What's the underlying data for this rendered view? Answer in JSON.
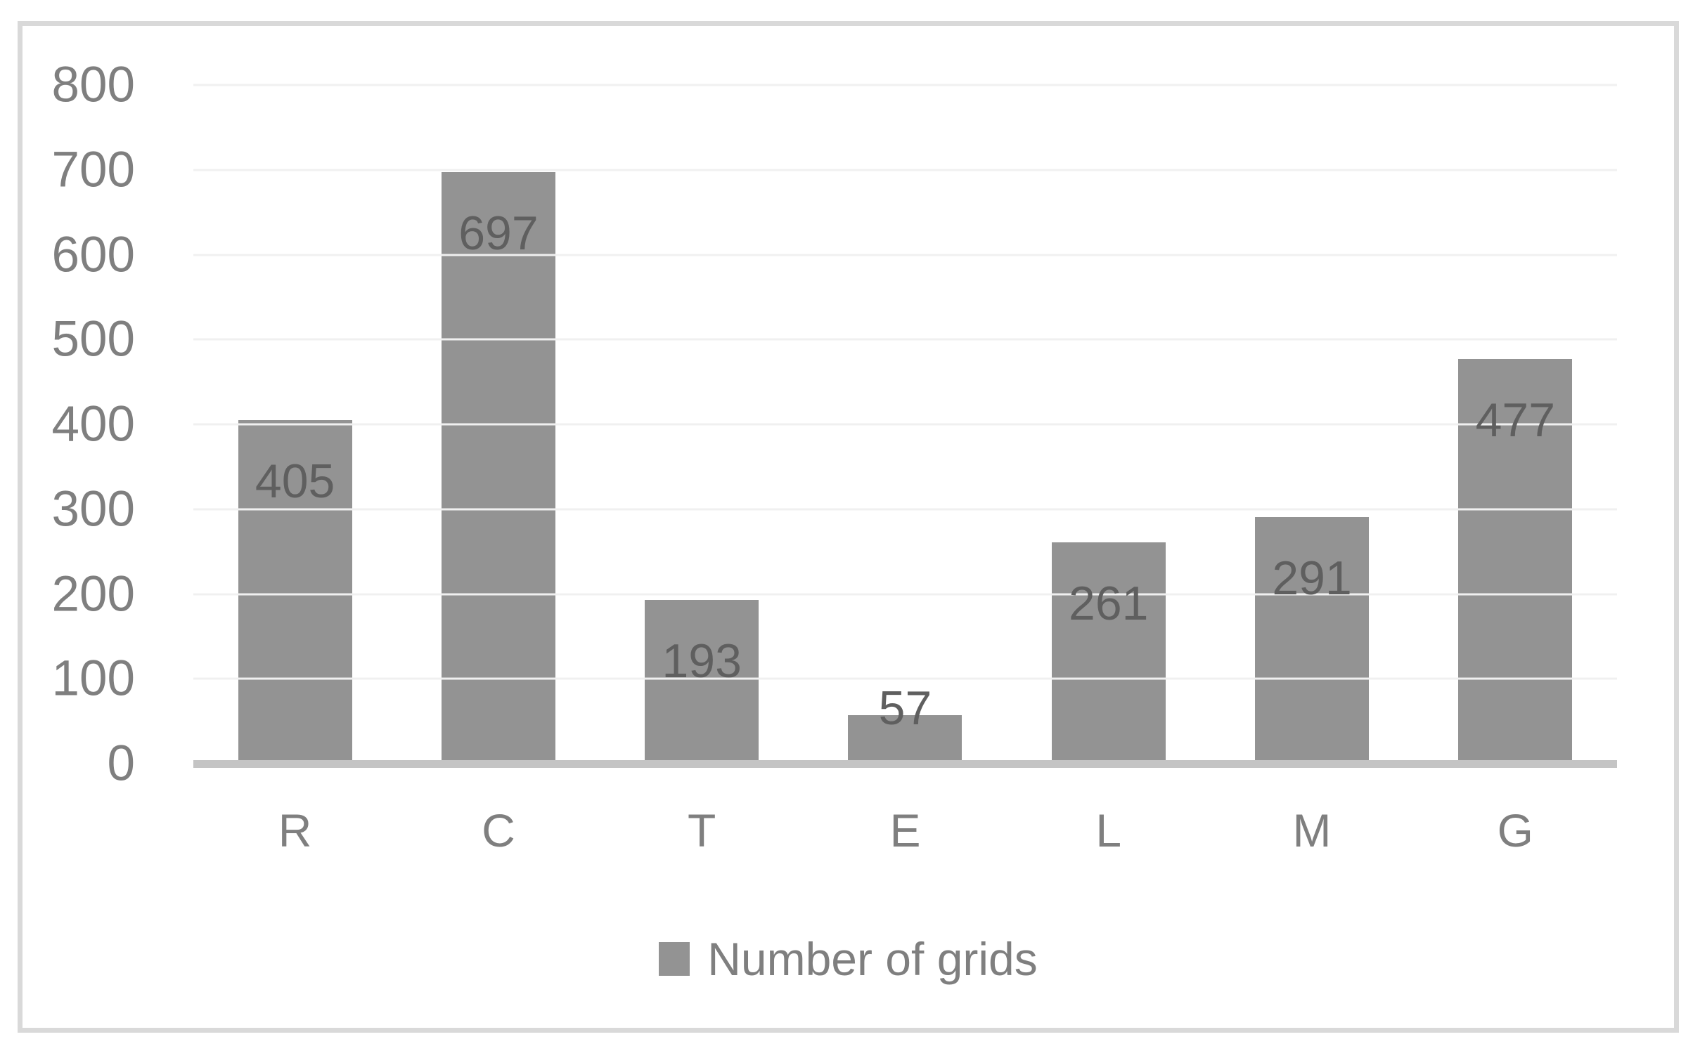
{
  "chart": {
    "legend": {
      "label": "Number of grids",
      "swatch_color": "#939393"
    },
    "colors": {
      "bar": "#939393",
      "data_label": "#5f5f5f",
      "axis_label": "#7f7f7f",
      "gridline": "#f0f0f0",
      "baseline": "#c4c4c4",
      "frame_border": "#d9d9d9",
      "background": "#ffffff"
    }
  },
  "chart_data": {
    "type": "bar",
    "categories": [
      "R",
      "C",
      "T",
      "E",
      "L",
      "M",
      "G"
    ],
    "values": [
      405,
      697,
      193,
      57,
      261,
      291,
      477
    ],
    "series_name": "Number of grids",
    "data_labels": [
      "405",
      "697",
      "193",
      "57",
      "261",
      "291",
      "477"
    ],
    "title": "",
    "xlabel": "",
    "ylabel": "",
    "ylim": [
      0,
      800
    ],
    "ytick_step": 100,
    "yticks": [
      "0",
      "100",
      "200",
      "300",
      "400",
      "500",
      "600",
      "700",
      "800"
    ],
    "grid": true,
    "legend_position": "bottom",
    "data_labels_shown": true
  }
}
